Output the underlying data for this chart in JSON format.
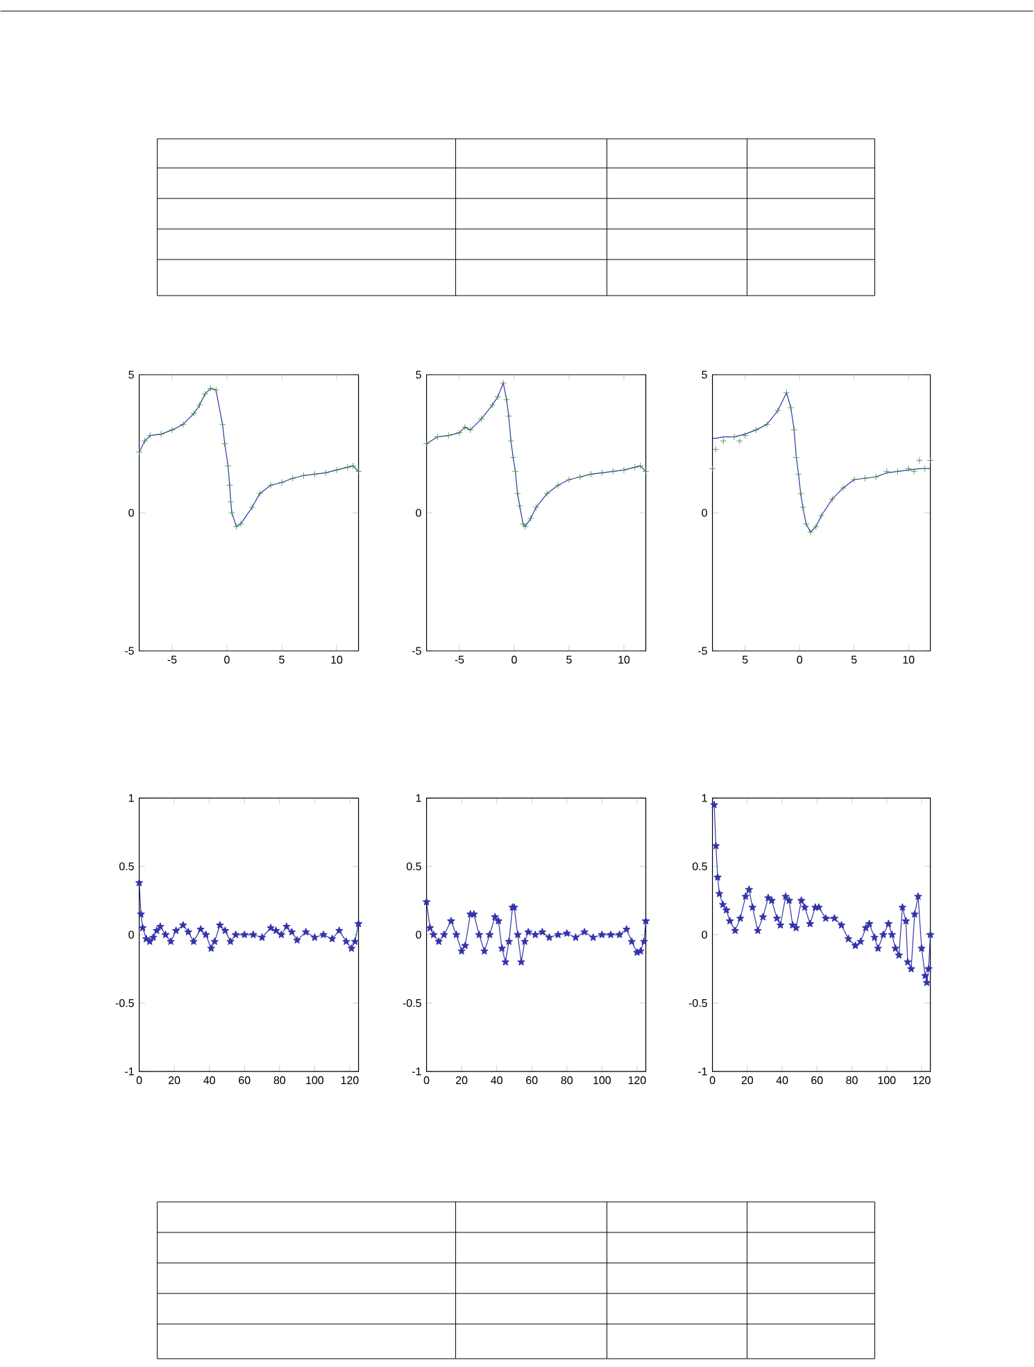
{
  "chart_data": [
    {
      "type": "line",
      "xlim": [
        -8,
        12
      ],
      "ylim": [
        -5,
        5
      ],
      "xticks": [
        -5,
        0,
        5,
        10
      ],
      "yticks": [
        -5,
        0,
        5
      ],
      "series": [
        {
          "type": "line",
          "marker": "none",
          "color": "#3333aa",
          "x": [
            -8,
            -7.5,
            -7,
            -6,
            -5,
            -4,
            -3,
            -2.5,
            -2,
            -1.5,
            -1,
            -0.4,
            -0.2,
            0.1,
            0.25,
            0.35,
            0.45,
            0.85,
            1.26,
            2.3,
            3,
            4,
            5,
            6,
            7,
            8,
            9,
            10,
            11,
            11.5,
            12
          ],
          "values": [
            2.2,
            2.6,
            2.8,
            2.85,
            3.0,
            3.2,
            3.6,
            3.9,
            4.3,
            4.5,
            4.45,
            3.2,
            2.5,
            1.7,
            1.0,
            0.4,
            0.0,
            -0.5,
            -0.4,
            0.2,
            0.7,
            1.0,
            1.1,
            1.25,
            1.35,
            1.4,
            1.45,
            1.55,
            1.65,
            1.7,
            1.5
          ]
        },
        {
          "type": "scatter",
          "marker": "cross",
          "color": "#2e8b2e",
          "x": [
            -8,
            -7.5,
            -7,
            -6,
            -5,
            -4,
            -3,
            -2.5,
            -2,
            -1.5,
            -1,
            -0.4,
            -0.2,
            0.1,
            0.25,
            0.35,
            0.45,
            0.85,
            1.26,
            2.3,
            3,
            4,
            5,
            6,
            7,
            8,
            9,
            10,
            11,
            11.5,
            12
          ],
          "values": [
            2.2,
            2.6,
            2.8,
            2.85,
            3.0,
            3.2,
            3.6,
            3.9,
            4.3,
            4.5,
            4.45,
            3.2,
            2.5,
            1.7,
            1.0,
            0.4,
            0.0,
            -0.5,
            -0.4,
            0.2,
            0.7,
            1.0,
            1.1,
            1.25,
            1.35,
            1.4,
            1.45,
            1.55,
            1.65,
            1.7,
            1.5
          ]
        }
      ]
    },
    {
      "type": "line",
      "xlim": [
        -8,
        12
      ],
      "ylim": [
        -5,
        5
      ],
      "xticks": [
        -5,
        0,
        5,
        10
      ],
      "yticks": [
        -5,
        0,
        5
      ],
      "series": [
        {
          "type": "line",
          "marker": "none",
          "color": "#3333aa",
          "x": [
            -8,
            -7,
            -6,
            -5,
            -4.5,
            -4,
            -3,
            -2,
            -1.5,
            -1,
            -0.7,
            -0.5,
            -0.3,
            -0.1,
            0.1,
            0.3,
            0.5,
            0.8,
            1,
            1.5,
            2,
            3,
            4,
            5,
            6,
            7,
            8,
            9,
            10,
            11,
            11.5,
            12
          ],
          "values": [
            2.5,
            2.75,
            2.8,
            2.9,
            3.1,
            3.0,
            3.4,
            3.9,
            4.2,
            4.7,
            4.1,
            3.5,
            2.6,
            2.0,
            1.5,
            0.7,
            0.25,
            -0.4,
            -0.5,
            -0.2,
            0.2,
            0.7,
            1.0,
            1.2,
            1.3,
            1.4,
            1.45,
            1.5,
            1.55,
            1.65,
            1.7,
            1.5
          ]
        },
        {
          "type": "scatter",
          "marker": "cross",
          "color": "#2e8b2e",
          "x": [
            -8,
            -7,
            -6,
            -5,
            -4.5,
            -4,
            -3,
            -2,
            -1.5,
            -1,
            -0.7,
            -0.5,
            -0.3,
            -0.1,
            0.1,
            0.3,
            0.5,
            0.8,
            1,
            1.5,
            2,
            3,
            4,
            5,
            6,
            7,
            8,
            9,
            10,
            11,
            11.5,
            12
          ],
          "values": [
            2.5,
            2.75,
            2.8,
            2.9,
            3.1,
            3.0,
            3.4,
            3.9,
            4.2,
            4.7,
            4.1,
            3.5,
            2.6,
            2.0,
            1.5,
            0.7,
            0.25,
            -0.4,
            -0.5,
            -0.2,
            0.2,
            0.7,
            1.0,
            1.2,
            1.3,
            1.4,
            1.45,
            1.5,
            1.55,
            1.65,
            1.7,
            1.5
          ]
        }
      ]
    },
    {
      "type": "line",
      "xlim": [
        -8,
        12
      ],
      "ylim": [
        -5,
        5
      ],
      "xticks": [
        {
          "value": -5,
          "label": "5"
        },
        0,
        5,
        10
      ],
      "yticks": [
        -5,
        0,
        5
      ],
      "series": [
        {
          "type": "line",
          "marker": "none",
          "color": "#3333aa",
          "x": [
            -8,
            -7.7,
            -7,
            -6,
            -5,
            -4,
            -3,
            -2,
            -1.2,
            -0.8,
            -0.5,
            -0.3,
            -0.1,
            0.1,
            0.3,
            0.6,
            1,
            1.5,
            2,
            3,
            4,
            5,
            6,
            7,
            8,
            9,
            10,
            11,
            12
          ],
          "values": [
            2.7,
            2.7,
            2.75,
            2.75,
            2.85,
            3.0,
            3.2,
            3.7,
            4.35,
            3.8,
            3.0,
            2.0,
            1.4,
            0.7,
            0.2,
            -0.4,
            -0.7,
            -0.5,
            -0.1,
            0.5,
            0.9,
            1.2,
            1.25,
            1.3,
            1.45,
            1.5,
            1.55,
            1.6,
            1.6
          ]
        },
        {
          "type": "scatter",
          "marker": "cross",
          "color": "#2e8b2e",
          "x": [
            -8,
            -7.7,
            -7,
            -6,
            -5.5,
            -5,
            -4,
            -3,
            -2,
            -1.2,
            -0.8,
            -0.5,
            -0.3,
            -0.1,
            0.1,
            0.3,
            0.6,
            1,
            1.5,
            2,
            3,
            4,
            5,
            6,
            7,
            8,
            9,
            10,
            10.5,
            11,
            11.5,
            12
          ],
          "values": [
            1.6,
            2.3,
            2.6,
            2.75,
            2.6,
            2.8,
            3.0,
            3.2,
            3.7,
            4.35,
            3.8,
            3.0,
            2.0,
            1.4,
            0.7,
            0.2,
            -0.4,
            -0.7,
            -0.5,
            -0.1,
            0.5,
            0.9,
            1.2,
            1.25,
            1.3,
            1.5,
            1.5,
            1.6,
            1.5,
            1.9,
            1.6,
            1.9
          ]
        }
      ]
    },
    {
      "type": "line",
      "marker": "star",
      "xlim": [
        0,
        125
      ],
      "ylim": [
        -1,
        1
      ],
      "xticks": [
        0,
        20,
        40,
        60,
        80,
        100,
        120
      ],
      "yticks": [
        -1,
        -0.5,
        0,
        0.5,
        1
      ],
      "series": [
        {
          "color": "#3333aa",
          "x": [
            0,
            1,
            2,
            4,
            6,
            8,
            10,
            12,
            15,
            18,
            21,
            25,
            28,
            31,
            35,
            38,
            41,
            43,
            46,
            49,
            52,
            55,
            60,
            65,
            70,
            75,
            78,
            81,
            84,
            87,
            90,
            95,
            100,
            105,
            110,
            114,
            118,
            121,
            123,
            125
          ],
          "values": [
            0.38,
            0.15,
            0.05,
            -0.03,
            -0.05,
            -0.02,
            0.03,
            0.06,
            0.0,
            -0.05,
            0.03,
            0.07,
            0.02,
            -0.05,
            0.04,
            0.0,
            -0.1,
            -0.05,
            0.07,
            0.03,
            -0.05,
            0.0,
            0.0,
            0.0,
            -0.02,
            0.05,
            0.03,
            0.0,
            0.06,
            0.02,
            -0.04,
            0.02,
            -0.02,
            0.0,
            -0.03,
            0.03,
            -0.05,
            -0.1,
            -0.05,
            0.08
          ]
        }
      ]
    },
    {
      "type": "line",
      "marker": "star",
      "xlim": [
        0,
        125
      ],
      "ylim": [
        -1,
        1
      ],
      "xticks": [
        0,
        20,
        40,
        60,
        80,
        100,
        120
      ],
      "yticks": [
        -1,
        -0.5,
        0,
        0.5,
        1
      ],
      "series": [
        {
          "color": "#3333aa",
          "x": [
            0,
            2,
            4,
            7,
            10,
            14,
            17,
            20,
            22,
            25,
            27,
            30,
            33,
            36,
            39,
            41,
            43,
            45,
            47,
            49,
            50,
            52,
            54,
            56,
            58,
            62,
            66,
            70,
            75,
            80,
            85,
            90,
            95,
            100,
            105,
            110,
            114,
            117,
            120,
            122,
            124,
            125
          ],
          "values": [
            0.24,
            0.05,
            0.0,
            -0.05,
            0.0,
            0.1,
            0.0,
            -0.12,
            -0.08,
            0.15,
            0.15,
            0.0,
            -0.12,
            0.0,
            0.13,
            0.1,
            -0.1,
            -0.2,
            -0.05,
            0.2,
            0.2,
            0.0,
            -0.2,
            -0.05,
            0.02,
            0.0,
            0.02,
            -0.02,
            0.0,
            0.01,
            -0.02,
            0.02,
            -0.02,
            0.0,
            0.0,
            0.0,
            0.04,
            -0.05,
            -0.13,
            -0.12,
            -0.05,
            0.1
          ]
        }
      ]
    },
    {
      "type": "line",
      "marker": "star",
      "xlim": [
        0,
        125
      ],
      "ylim": [
        -1,
        1
      ],
      "xticks": [
        0,
        20,
        40,
        60,
        80,
        100,
        120
      ],
      "yticks": [
        -1,
        -0.5,
        0,
        0.5,
        1
      ],
      "series": [
        {
          "color": "#3333aa",
          "x": [
            1,
            2,
            3,
            4,
            6,
            8,
            10,
            13,
            16,
            19,
            21,
            23,
            26,
            29,
            32,
            34,
            37,
            39,
            42,
            44,
            46,
            48,
            51,
            53,
            56,
            59,
            61,
            65,
            70,
            74,
            78,
            82,
            85,
            88,
            90,
            93,
            95,
            98,
            101,
            103,
            105,
            107,
            109,
            111,
            112,
            114,
            116,
            118,
            120,
            122,
            123,
            124,
            125
          ],
          "values": [
            0.95,
            0.65,
            0.42,
            0.3,
            0.22,
            0.18,
            0.1,
            0.03,
            0.12,
            0.28,
            0.33,
            0.2,
            0.03,
            0.13,
            0.27,
            0.25,
            0.12,
            0.07,
            0.28,
            0.25,
            0.07,
            0.05,
            0.25,
            0.2,
            0.08,
            0.2,
            0.2,
            0.12,
            0.12,
            0.07,
            -0.03,
            -0.08,
            -0.05,
            0.05,
            0.08,
            -0.02,
            -0.1,
            0.0,
            0.08,
            0.0,
            -0.1,
            -0.15,
            0.2,
            0.1,
            -0.2,
            -0.25,
            0.15,
            0.28,
            -0.1,
            -0.3,
            -0.35,
            -0.25,
            0.0
          ]
        }
      ]
    }
  ]
}
